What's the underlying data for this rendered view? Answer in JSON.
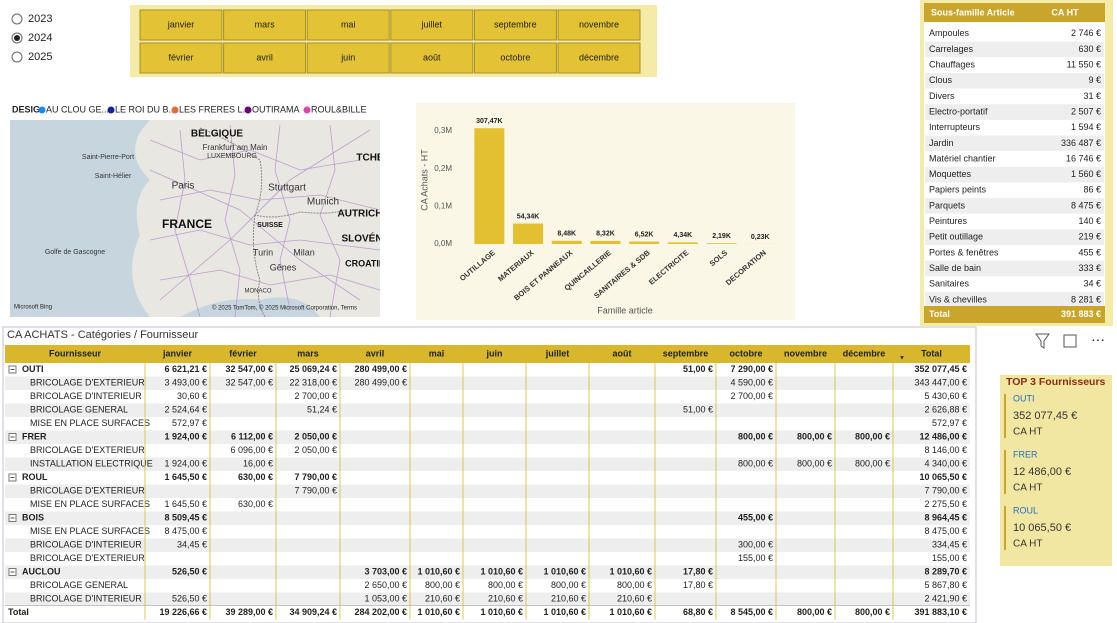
{
  "year_slicer": {
    "options": [
      "2023",
      "2024",
      "2025"
    ],
    "selected": "2024"
  },
  "month_slicer": {
    "months": [
      "janvier",
      "février",
      "mars",
      "avril",
      "mai",
      "juin",
      "juillet",
      "août",
      "septembre",
      "octobre",
      "novembre",
      "décembre"
    ]
  },
  "map": {
    "legend_title": "DESIG",
    "legend": [
      {
        "name": "AU CLOU GE...",
        "color": "#118dff"
      },
      {
        "name": "LE ROI DU B...",
        "color": "#12239e"
      },
      {
        "name": "LES FRERES L...",
        "color": "#e66c37"
      },
      {
        "name": "OUTIRAMA",
        "color": "#6b007b"
      },
      {
        "name": "ROUL&BILLE",
        "color": "#e044a7"
      }
    ],
    "labels": [
      "BELGIQUE",
      "Frankfurt am Main",
      "LUXEMBOURG",
      "Saint-Pierre-Port",
      "Saint-Hélier",
      "Paris",
      "Stuttgart",
      "FRANCE",
      "Munich",
      "AUTRICH",
      "TCHE",
      "SUISSE",
      "SLOVÉN",
      "Turin",
      "Milan",
      "Gênes",
      "Golfe de Gascogne",
      "CROATIE",
      "MONACO"
    ],
    "provider": "Microsoft Bing",
    "attribution": "© 2025 TomTom, © 2025 Microsoft Corporation, Terms"
  },
  "chart_data": {
    "type": "bar",
    "y_label": "CA Achats - HT",
    "x_label": "Famille article",
    "categories": [
      "OUTILLAGE",
      "MATERIAUX",
      "BOIS ET PANNEAUX",
      "QUINCAILLERIE",
      "SANITAIRES & SDB",
      "ELECTRICITE",
      "SOLS",
      "DECORATION"
    ],
    "values": [
      307470,
      54340,
      8480,
      8320,
      6520,
      4340,
      2190,
      230
    ],
    "value_labels": [
      "307,47K",
      "54,34K",
      "8,48K",
      "8,32K",
      "6,52K",
      "4,34K",
      "2,19K",
      "0,23K"
    ],
    "color": "#e2c02f",
    "ylim": [
      0,
      320000
    ],
    "yticks": [
      {
        "value": 0,
        "label": "0,0M"
      },
      {
        "value": 100000,
        "label": "0,1M"
      },
      {
        "value": 200000,
        "label": "0,2M"
      },
      {
        "value": 300000,
        "label": "0,3M"
      }
    ]
  },
  "subfamily_table": {
    "headers": [
      "Sous-famille Article",
      "CA HT"
    ],
    "rows": [
      [
        "Ampoules",
        "2 746 €"
      ],
      [
        "Carrelages",
        "630 €"
      ],
      [
        "Chauffages",
        "11 550 €"
      ],
      [
        "Clous",
        "9 €"
      ],
      [
        "Divers",
        "31 €"
      ],
      [
        "Electro-portatif",
        "2 507 €"
      ],
      [
        "Interrupteurs",
        "1 594 €"
      ],
      [
        "Jardin",
        "336 487 €"
      ],
      [
        "Matériel chantier",
        "16 746 €"
      ],
      [
        "Moquettes",
        "1 560 €"
      ],
      [
        "Papiers peints",
        "86 €"
      ],
      [
        "Parquets",
        "8 475 €"
      ],
      [
        "Peintures",
        "140 €"
      ],
      [
        "Petit outillage",
        "219 €"
      ],
      [
        "Portes & fenêtres",
        "455 €"
      ],
      [
        "Salle de bain",
        "333 €"
      ],
      [
        "Sanitaires",
        "34 €"
      ],
      [
        "Vis & chevilles",
        "8 281 €"
      ]
    ],
    "total": [
      "Total",
      "391 883 €"
    ]
  },
  "matrix": {
    "title": "CA ACHATS - Catégories / Fournisseur",
    "headers": [
      "Fournisseur",
      "janvier",
      "février",
      "mars",
      "avril",
      "mai",
      "juin",
      "juillet",
      "août",
      "septembre",
      "octobre",
      "novembre",
      "décembre",
      "Total"
    ],
    "rows": [
      {
        "label": "OUTI",
        "level": 0,
        "cells": [
          "6 621,21 €",
          "32 547,00 €",
          "25 069,24 €",
          "280 499,00 €",
          null,
          null,
          null,
          null,
          "51,00 €",
          "7 290,00 €",
          null,
          null,
          "352 077,45 €"
        ]
      },
      {
        "label": "BRICOLAGE D'EXTERIEUR",
        "level": 1,
        "cells": [
          "3 493,00 €",
          "32 547,00 €",
          "22 318,00 €",
          "280 499,00 €",
          null,
          null,
          null,
          null,
          null,
          "4 590,00 €",
          null,
          null,
          "343 447,00 €"
        ]
      },
      {
        "label": "BRICOLAGE D'INTERIEUR",
        "level": 1,
        "cells": [
          "30,60 €",
          null,
          "2 700,00 €",
          null,
          null,
          null,
          null,
          null,
          null,
          "2 700,00 €",
          null,
          null,
          "5 430,60 €"
        ]
      },
      {
        "label": "BRICOLAGE GENERAL",
        "level": 1,
        "cells": [
          "2 524,64 €",
          null,
          "51,24 €",
          null,
          null,
          null,
          null,
          null,
          "51,00 €",
          null,
          null,
          null,
          "2 626,88 €"
        ]
      },
      {
        "label": "MISE EN PLACE SURFACES",
        "level": 1,
        "cells": [
          "572,97 €",
          null,
          null,
          null,
          null,
          null,
          null,
          null,
          null,
          null,
          null,
          null,
          "572,97 €"
        ]
      },
      {
        "label": "FRER",
        "level": 0,
        "cells": [
          "1 924,00 €",
          "6 112,00 €",
          "2 050,00 €",
          null,
          null,
          null,
          null,
          null,
          null,
          "800,00 €",
          "800,00 €",
          "800,00 €",
          "12 486,00 €"
        ]
      },
      {
        "label": "BRICOLAGE D'EXTERIEUR",
        "level": 1,
        "cells": [
          null,
          "6 096,00 €",
          "2 050,00 €",
          null,
          null,
          null,
          null,
          null,
          null,
          null,
          null,
          null,
          "8 146,00 €"
        ]
      },
      {
        "label": "INSTALLATION ELECTRIQUE",
        "level": 1,
        "cells": [
          "1 924,00 €",
          "16,00 €",
          null,
          null,
          null,
          null,
          null,
          null,
          null,
          "800,00 €",
          "800,00 €",
          "800,00 €",
          "4 340,00 €"
        ]
      },
      {
        "label": "ROUL",
        "level": 0,
        "cells": [
          "1 645,50 €",
          "630,00 €",
          "7 790,00 €",
          null,
          null,
          null,
          null,
          null,
          null,
          null,
          null,
          null,
          "10 065,50 €"
        ]
      },
      {
        "label": "BRICOLAGE D'EXTERIEUR",
        "level": 1,
        "cells": [
          null,
          null,
          "7 790,00 €",
          null,
          null,
          null,
          null,
          null,
          null,
          null,
          null,
          null,
          "7 790,00 €"
        ]
      },
      {
        "label": "MISE EN PLACE SURFACES",
        "level": 1,
        "cells": [
          "1 645,50 €",
          "630,00 €",
          null,
          null,
          null,
          null,
          null,
          null,
          null,
          null,
          null,
          null,
          "2 275,50 €"
        ]
      },
      {
        "label": "BOIS",
        "level": 0,
        "cells": [
          "8 509,45 €",
          null,
          null,
          null,
          null,
          null,
          null,
          null,
          null,
          "455,00 €",
          null,
          null,
          "8 964,45 €"
        ]
      },
      {
        "label": "MISE EN PLACE SURFACES",
        "level": 1,
        "cells": [
          "8 475,00 €",
          null,
          null,
          null,
          null,
          null,
          null,
          null,
          null,
          null,
          null,
          null,
          "8 475,00 €"
        ]
      },
      {
        "label": "BRICOLAGE D'INTERIEUR",
        "level": 1,
        "cells": [
          "34,45 €",
          null,
          null,
          null,
          null,
          null,
          null,
          null,
          null,
          "300,00 €",
          null,
          null,
          "334,45 €"
        ]
      },
      {
        "label": "BRICOLAGE D'EXTERIEUR",
        "level": 1,
        "cells": [
          null,
          null,
          null,
          null,
          null,
          null,
          null,
          null,
          null,
          "155,00 €",
          null,
          null,
          "155,00 €"
        ]
      },
      {
        "label": "AUCLOU",
        "level": 0,
        "cells": [
          "526,50 €",
          null,
          null,
          "3 703,00 €",
          "1 010,60 €",
          "1 010,60 €",
          "1 010,60 €",
          "1 010,60 €",
          "17,80 €",
          null,
          null,
          null,
          "8 289,70 €"
        ]
      },
      {
        "label": "BRICOLAGE GENERAL",
        "level": 1,
        "cells": [
          null,
          null,
          null,
          "2 650,00 €",
          "800,00 €",
          "800,00 €",
          "800,00 €",
          "800,00 €",
          "17,80 €",
          null,
          null,
          null,
          "5 867,80 €"
        ]
      },
      {
        "label": "BRICOLAGE D'INTERIEUR",
        "level": 1,
        "cells": [
          "526,50 €",
          null,
          null,
          "1 053,00 €",
          "210,60 €",
          "210,60 €",
          "210,60 €",
          "210,60 €",
          null,
          null,
          null,
          null,
          "2 421,90 €"
        ]
      }
    ],
    "total": {
      "label": "Total",
      "cells": [
        "19 226,66 €",
        "39 289,00 €",
        "34 909,24 €",
        "284 202,00 €",
        "1 010,60 €",
        "1 010,60 €",
        "1 010,60 €",
        "1 010,60 €",
        "68,80 €",
        "8 545,00 €",
        "800,00 €",
        "800,00 €",
        "391 883,10 €"
      ]
    }
  },
  "top3": {
    "title": "TOP 3 Fournisseurs",
    "items": [
      {
        "name": "OUTI",
        "value": "352 077,45 €",
        "measure": "CA HT"
      },
      {
        "name": "FRER",
        "value": "12 486,00 €",
        "measure": "CA HT"
      },
      {
        "name": "ROUL",
        "value": "10 065,50 €",
        "measure": "CA HT"
      }
    ]
  }
}
